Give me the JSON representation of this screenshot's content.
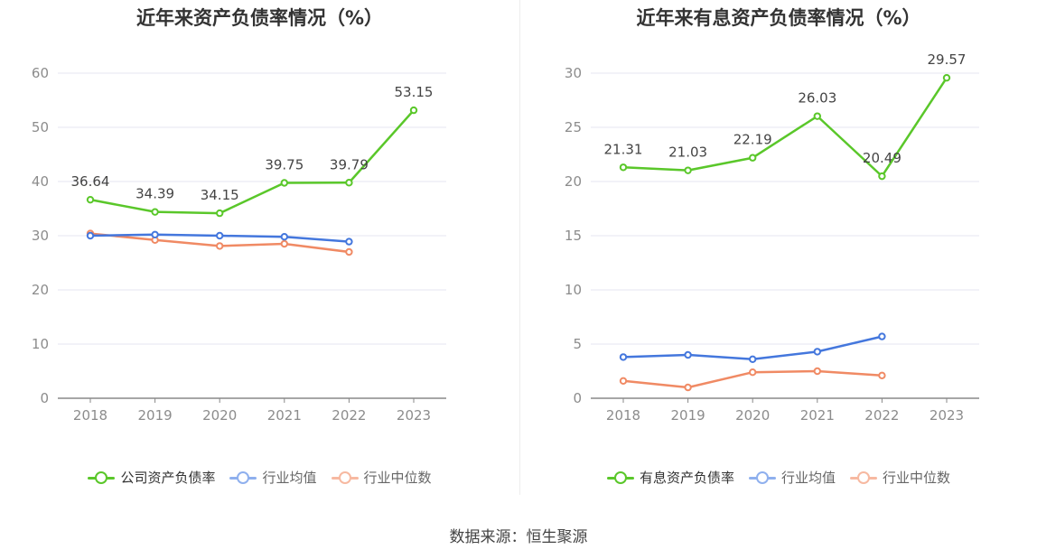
{
  "source_label": "数据来源：恒生聚源",
  "colors": {
    "company": "#5ac72a",
    "avg": "#4477dd",
    "median": "#f08a64",
    "grid": "#e4e6f0",
    "axis": "#888888",
    "tick": "#8c8c8c"
  },
  "chart_data": [
    {
      "type": "line",
      "title": "近年来资产负债率情况（%）",
      "categories": [
        "2018",
        "2019",
        "2020",
        "2021",
        "2022",
        "2023"
      ],
      "ylim": [
        0,
        60
      ],
      "yticks": [
        0,
        10,
        20,
        30,
        40,
        50,
        60
      ],
      "grid": true,
      "legend_position": "bottom",
      "series": [
        {
          "name": "公司资产负债率",
          "color": "#5ac72a",
          "values": [
            36.64,
            34.39,
            34.15,
            39.75,
            39.79,
            53.15
          ],
          "labels": [
            "36.64",
            "34.39",
            "34.15",
            "39.75",
            "39.79",
            "53.15"
          ]
        },
        {
          "name": "行业均值",
          "color": "#4477dd",
          "values": [
            30.0,
            30.2,
            30.0,
            29.8,
            28.9,
            null
          ]
        },
        {
          "name": "行业中位数",
          "color": "#f08a64",
          "values": [
            30.4,
            29.2,
            28.1,
            28.5,
            27.0,
            null
          ]
        }
      ]
    },
    {
      "type": "line",
      "title": "近年来有息资产负债率情况（%）",
      "categories": [
        "2018",
        "2019",
        "2020",
        "2021",
        "2022",
        "2023"
      ],
      "ylim": [
        0,
        30
      ],
      "yticks": [
        0,
        5,
        10,
        15,
        20,
        25,
        30
      ],
      "grid": true,
      "legend_position": "bottom",
      "series": [
        {
          "name": "有息资产负债率",
          "color": "#5ac72a",
          "values": [
            21.31,
            21.03,
            22.19,
            26.03,
            20.49,
            29.57
          ],
          "labels": [
            "21.31",
            "21.03",
            "22.19",
            "26.03",
            "20.49",
            "29.57"
          ]
        },
        {
          "name": "行业均值",
          "color": "#4477dd",
          "values": [
            3.8,
            4.0,
            3.6,
            4.3,
            5.7,
            null
          ]
        },
        {
          "name": "行业中位数",
          "color": "#f08a64",
          "values": [
            1.6,
            1.0,
            2.4,
            2.5,
            2.1,
            null
          ]
        }
      ]
    }
  ]
}
